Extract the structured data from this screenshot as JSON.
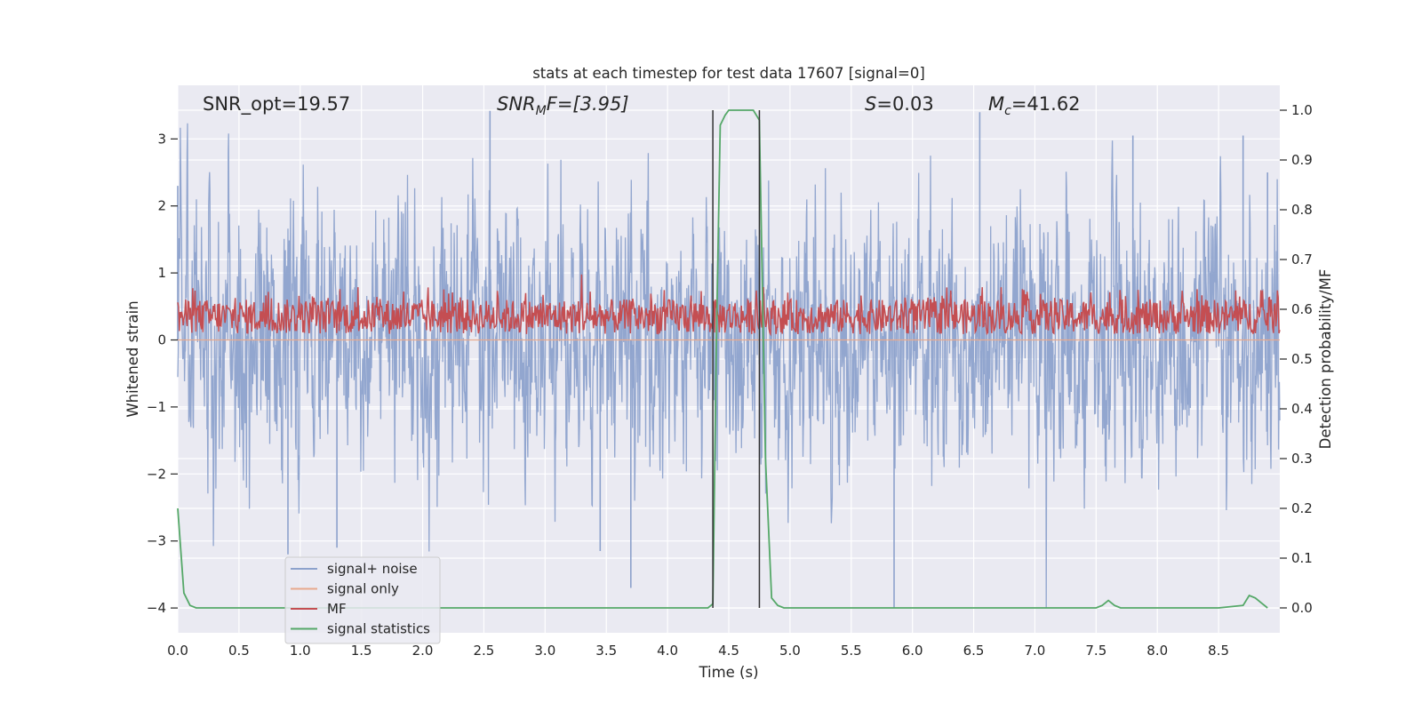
{
  "chart_data": {
    "type": "line",
    "title": "stats at each timestep for test data 17607 [signal=0]",
    "xlabel": "Time (s)",
    "ylabel": "Whitened strain",
    "y2label": "Detection probability/MF",
    "xlim": [
      0.0,
      9.0
    ],
    "ylim": [
      -4.37,
      3.8
    ],
    "y2lim": [
      -0.05,
      1.05
    ],
    "xticks": [
      "0.0",
      "0.5",
      "1.0",
      "1.5",
      "2.0",
      "2.5",
      "3.0",
      "3.5",
      "4.0",
      "4.5",
      "5.0",
      "5.5",
      "6.0",
      "6.5",
      "7.0",
      "7.5",
      "8.0",
      "8.5"
    ],
    "xtick_values": [
      0.0,
      0.5,
      1.0,
      1.5,
      2.0,
      2.5,
      3.0,
      3.5,
      4.0,
      4.5,
      5.0,
      5.5,
      6.0,
      6.5,
      7.0,
      7.5,
      8.0,
      8.5
    ],
    "yticks": [
      "−4",
      "−3",
      "−2",
      "−1",
      "0",
      "1",
      "2",
      "3"
    ],
    "ytick_values": [
      -4,
      -3,
      -2,
      -1,
      0,
      1,
      2,
      3
    ],
    "y2ticks": [
      "0.0",
      "0.1",
      "0.2",
      "0.3",
      "0.4",
      "0.5",
      "0.6",
      "0.7",
      "0.8",
      "0.9",
      "1.0"
    ],
    "y2tick_values": [
      0.0,
      0.1,
      0.2,
      0.3,
      0.4,
      0.5,
      0.6,
      0.7,
      0.8,
      0.9,
      1.0
    ],
    "grid": true,
    "legend_position": "lower-left",
    "annotations": {
      "snr_opt": "SNR_opt=19.57",
      "snr_mf_base": "SNR",
      "snr_mf_sub": "M",
      "snr_mf_rest": "F=[3.95]",
      "s_var": "S",
      "s_rest": "=0.03",
      "mc_var": "M",
      "mc_sub": "c",
      "mc_rest": "=41.62"
    },
    "series": [
      {
        "name": "signal+ noise",
        "color": "#8da2cc",
        "axis": "left",
        "style": "dense noise",
        "noise_envelope": {
          "typical_abs": 1.7,
          "max": 3.42,
          "min": -4.0
        },
        "points": [
          [
            0.0,
            2.3
          ],
          [
            0.9,
            -3.2
          ],
          [
            1.3,
            -3.1
          ],
          [
            2.55,
            3.42
          ],
          [
            3.45,
            -3.15
          ],
          [
            3.7,
            -3.7
          ],
          [
            5.85,
            -4.0
          ],
          [
            6.55,
            3.4
          ],
          [
            7.8,
            3.05
          ],
          [
            8.7,
            3.05
          ],
          [
            8.9,
            2.5
          ]
        ]
      },
      {
        "name": "signal only",
        "color": "#e8a98d",
        "axis": "left",
        "x": [
          0.0,
          9.0
        ],
        "y": [
          0.0,
          0.0
        ]
      },
      {
        "name": "MF",
        "color": "#c44e52",
        "axis": "right",
        "style": "dense noise",
        "range": [
          0.55,
          0.62
        ],
        "peak": {
          "x": 3.3,
          "y": 0.67
        }
      },
      {
        "name": "signal statistics",
        "color": "#55a868",
        "axis": "right",
        "x": [
          0.0,
          0.05,
          0.1,
          0.15,
          0.25,
          1.0,
          2.0,
          3.0,
          4.0,
          4.33,
          4.37,
          4.4,
          4.43,
          4.47,
          4.5,
          4.55,
          4.6,
          4.65,
          4.7,
          4.75,
          4.8,
          4.85,
          4.9,
          4.95,
          5.0,
          6.0,
          7.0,
          7.5,
          7.55,
          7.6,
          7.65,
          7.7,
          8.0,
          8.5,
          8.7,
          8.75,
          8.8,
          8.85,
          8.9
        ],
        "y": [
          0.2,
          0.03,
          0.005,
          0.0,
          0.0,
          0.0,
          0.0,
          0.0,
          0.0,
          0.0,
          0.008,
          0.55,
          0.97,
          0.99,
          1.0,
          1.0,
          1.0,
          1.0,
          1.0,
          0.98,
          0.3,
          0.02,
          0.005,
          0.0,
          0.0,
          0.0,
          0.0,
          0.0,
          0.005,
          0.015,
          0.005,
          0.0,
          0.0,
          0.0,
          0.005,
          0.025,
          0.02,
          0.01,
          0.0
        ]
      }
    ],
    "vlines": [
      {
        "x": 4.37,
        "color": "#333333"
      },
      {
        "x": 4.75,
        "color": "#333333"
      }
    ]
  }
}
